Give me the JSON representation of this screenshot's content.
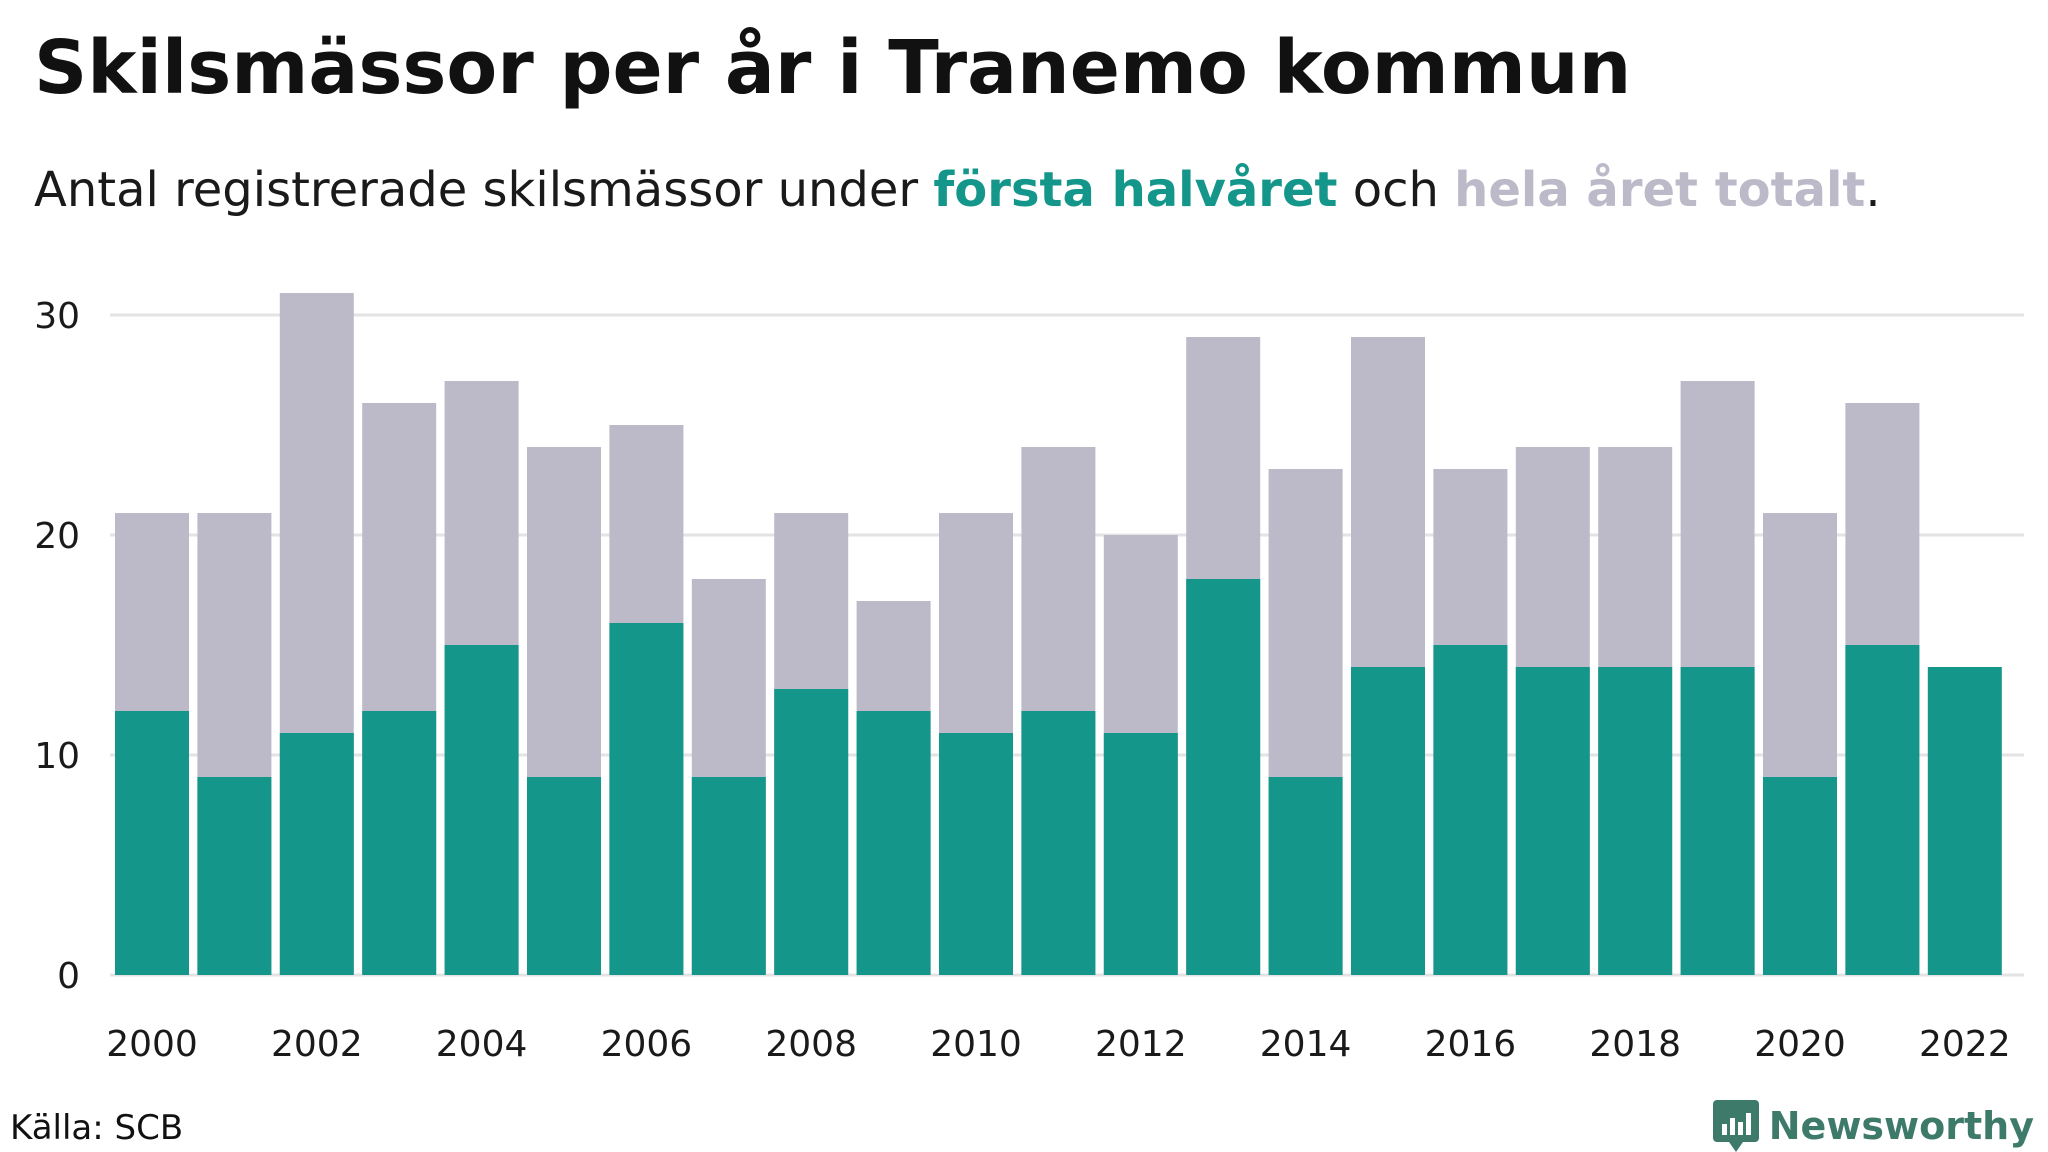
{
  "title": "Skilsmässor per år i Tranemo kommun",
  "subtitle": {
    "prefix": "Antal registrerade skilsmässor under ",
    "highlight1": "första halvåret",
    "middle": " och ",
    "highlight2": "hela året totalt",
    "suffix": "."
  },
  "colors": {
    "first_half": "#14968a",
    "total": "#bcbac8",
    "grid": "#e3e3e6",
    "logo": "#3e7a6a"
  },
  "source": "Källa: SCB",
  "logo": {
    "text": "Newsworthy",
    "icon": "bar-chart-icon"
  },
  "chart_data": {
    "type": "bar",
    "stacking": "overlay",
    "categories": [
      "2000",
      "2001",
      "2002",
      "2003",
      "2004",
      "2005",
      "2006",
      "2007",
      "2008",
      "2009",
      "2010",
      "2011",
      "2012",
      "2013",
      "2014",
      "2015",
      "2016",
      "2017",
      "2018",
      "2019",
      "2020",
      "2021",
      "2022"
    ],
    "series": [
      {
        "name": "hela året totalt",
        "color": "#bcbac8",
        "values": [
          21,
          21,
          31,
          26,
          27,
          24,
          25,
          18,
          21,
          17,
          21,
          24,
          20,
          29,
          23,
          29,
          23,
          24,
          24,
          27,
          21,
          26,
          null
        ]
      },
      {
        "name": "första halvåret",
        "color": "#14968a",
        "values": [
          12,
          9,
          11,
          12,
          15,
          9,
          16,
          9,
          13,
          12,
          11,
          12,
          11,
          18,
          9,
          14,
          15,
          14,
          14,
          14,
          9,
          15,
          14
        ]
      }
    ],
    "xtick_labels": [
      "2000",
      "2002",
      "2004",
      "2006",
      "2008",
      "2010",
      "2012",
      "2014",
      "2016",
      "2018",
      "2020",
      "2022"
    ],
    "yticks": [
      0,
      10,
      20,
      30
    ],
    "ylim": [
      0,
      31
    ],
    "grid": true,
    "legend": "in subtitle"
  }
}
